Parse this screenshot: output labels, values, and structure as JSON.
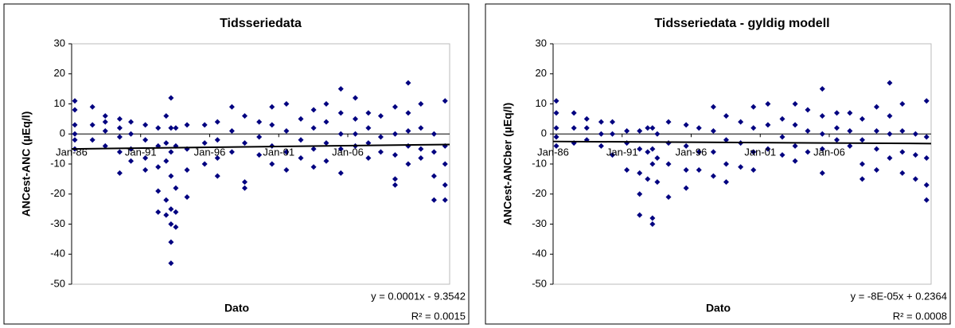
{
  "chart_data": [
    {
      "type": "scatter",
      "title": "Tidsseriedata",
      "x_label": "Dato",
      "y_label": "ANCest-ANC (µEq/l)",
      "color": "#000080",
      "xlim": [
        31413,
        41413
      ],
      "ylim": [
        -50,
        30
      ],
      "xticks": [
        {
          "value": 31413,
          "label": "Jan-86"
        },
        {
          "value": 33239,
          "label": "Jan-91"
        },
        {
          "value": 35065,
          "label": "Jan-96"
        },
        {
          "value": 36892,
          "label": "Jan-01"
        },
        {
          "value": 38718,
          "label": "Jan-06"
        }
      ],
      "yticks": [
        -50,
        -40,
        -30,
        -20,
        -10,
        0,
        10,
        20,
        30
      ],
      "grid": false,
      "x": [
        31498,
        31498,
        31498,
        31498,
        31498,
        31498,
        31964,
        31964,
        31964,
        32303,
        32303,
        32303,
        32303,
        32685,
        32685,
        32685,
        32685,
        32685,
        32982,
        32982,
        32982,
        32982,
        33363,
        33363,
        33363,
        33363,
        33702,
        33702,
        33702,
        33702,
        33702,
        33914,
        33914,
        33914,
        33914,
        33914,
        34042,
        34042,
        34042,
        34042,
        34042,
        34042,
        34042,
        34042,
        34169,
        34169,
        34169,
        34169,
        34169,
        34466,
        34466,
        34466,
        34466,
        34932,
        34932,
        34932,
        35271,
        35271,
        35271,
        35271,
        35653,
        35653,
        35653,
        35992,
        35992,
        35992,
        35992,
        36374,
        36374,
        36374,
        36713,
        36713,
        36713,
        36713,
        37095,
        37095,
        37095,
        37095,
        37476,
        37476,
        37476,
        37815,
        37815,
        37815,
        37815,
        38149,
        38149,
        38149,
        38149,
        38535,
        38535,
        38535,
        38535,
        38535,
        38918,
        38918,
        38918,
        38918,
        39263,
        39263,
        39263,
        39263,
        39591,
        39591,
        39591,
        39970,
        39970,
        39970,
        39970,
        39970,
        40317,
        40317,
        40317,
        40317,
        40317,
        40652,
        40652,
        40652,
        40652,
        41000,
        41000,
        41000,
        41000,
        41292,
        41292,
        41292,
        41292,
        41292
      ],
      "values": [
        11,
        8,
        3,
        0,
        -2,
        -5,
        9,
        3,
        -2,
        6,
        4,
        1,
        -4,
        5,
        2,
        -1,
        -6,
        -13,
        4,
        0,
        -5,
        -9,
        3,
        -2,
        -8,
        -12,
        2,
        -4,
        -11,
        -19,
        -26,
        6,
        -3,
        -9,
        -22,
        -27,
        12,
        2,
        -6,
        -14,
        -25,
        -30,
        -36,
        -43,
        2,
        -4,
        -18,
        -26,
        -31,
        3,
        -5,
        -12,
        -21,
        3,
        -3,
        -10,
        4,
        -2,
        -8,
        -14,
        9,
        1,
        -6,
        6,
        -3,
        -16,
        -18,
        4,
        -1,
        -7,
        9,
        3,
        -4,
        -10,
        10,
        1,
        -6,
        -12,
        5,
        -2,
        -8,
        8,
        2,
        -5,
        -11,
        10,
        4,
        -3,
        -9,
        15,
        7,
        0,
        -5,
        -13,
        12,
        5,
        0,
        -4,
        7,
        2,
        -3,
        -8,
        6,
        -1,
        -6,
        9,
        0,
        -7,
        -15,
        -17,
        17,
        7,
        1,
        -4,
        -10,
        10,
        2,
        -5,
        -8,
        0,
        -6,
        -14,
        -22,
        11,
        -4,
        -10,
        -17,
        -22
      ],
      "trendline": {
        "x": [
          31413,
          41413
        ],
        "values": [
          -5,
          -3.5
        ],
        "equation": "y = 0.0001x - 9.3542",
        "r_squared": "R² = 0.0015"
      }
    },
    {
      "type": "scatter",
      "title": "Tidsseriedata - gyldig modell",
      "x_label": "Dato",
      "y_label": "ANCest-ANCber (µEq/l)",
      "color": "#000080",
      "xlim": [
        31413,
        41413
      ],
      "ylim": [
        -50,
        30
      ],
      "xticks": [
        {
          "value": 31413,
          "label": "Jan-86"
        },
        {
          "value": 33239,
          "label": "Jan-91"
        },
        {
          "value": 35065,
          "label": "Jan-96"
        },
        {
          "value": 36892,
          "label": "Jan-01"
        },
        {
          "value": 38718,
          "label": "Jan-06"
        }
      ],
      "yticks": [
        -50,
        -40,
        -30,
        -20,
        -10,
        0,
        10,
        20,
        30
      ],
      "grid": false,
      "x": [
        31498,
        31498,
        31498,
        31498,
        31498,
        31964,
        31964,
        31964,
        32303,
        32303,
        32303,
        32685,
        32685,
        32685,
        32982,
        32982,
        32982,
        33363,
        33363,
        33363,
        33702,
        33702,
        33702,
        33702,
        33702,
        33914,
        33914,
        33914,
        34042,
        34042,
        34042,
        34042,
        34042,
        34169,
        34169,
        34169,
        34466,
        34466,
        34466,
        34466,
        34932,
        34932,
        34932,
        34932,
        35271,
        35271,
        35271,
        35653,
        35653,
        35653,
        35653,
        35992,
        35992,
        35992,
        35992,
        36374,
        36374,
        36374,
        36713,
        36713,
        36713,
        36713,
        37095,
        37095,
        37095,
        37476,
        37476,
        37476,
        37815,
        37815,
        37815,
        37815,
        38149,
        38149,
        38149,
        38535,
        38535,
        38535,
        38535,
        38535,
        38918,
        38918,
        38918,
        39263,
        39263,
        39263,
        39591,
        39591,
        39591,
        39591,
        39970,
        39970,
        39970,
        39970,
        40317,
        40317,
        40317,
        40317,
        40652,
        40652,
        40652,
        40652,
        41000,
        41000,
        41000,
        41292,
        41292,
        41292,
        41292,
        41292
      ],
      "values": [
        11,
        7,
        2,
        -1,
        -4,
        7,
        2,
        -3,
        5,
        2,
        -2,
        4,
        0,
        -4,
        4,
        0,
        -7,
        1,
        -3,
        -12,
        1,
        -5,
        -13,
        -20,
        -27,
        2,
        -6,
        -15,
        2,
        -5,
        -10,
        -28,
        -30,
        0,
        -8,
        -16,
        4,
        -3,
        -10,
        -21,
        3,
        -4,
        -12,
        -18,
        2,
        -6,
        -12,
        9,
        1,
        -6,
        -14,
        6,
        -2,
        -10,
        -16,
        4,
        -3,
        -11,
        9,
        2,
        -6,
        -12,
        10,
        3,
        -5,
        5,
        -1,
        -7,
        10,
        3,
        -4,
        -9,
        8,
        1,
        -6,
        15,
        6,
        0,
        -5,
        -13,
        7,
        2,
        -2,
        7,
        1,
        -4,
        5,
        -2,
        -10,
        -15,
        9,
        1,
        -5,
        -12,
        17,
        6,
        0,
        -8,
        10,
        1,
        -6,
        -13,
        0,
        -7,
        -15,
        11,
        -1,
        -8,
        -17,
        -22
      ],
      "trendline": {
        "x": [
          31413,
          41413
        ],
        "values": [
          -2.5,
          -3.2
        ],
        "equation": "y = -8E-05x + 0.2364",
        "r_squared": "R² = 0.0008"
      }
    }
  ]
}
